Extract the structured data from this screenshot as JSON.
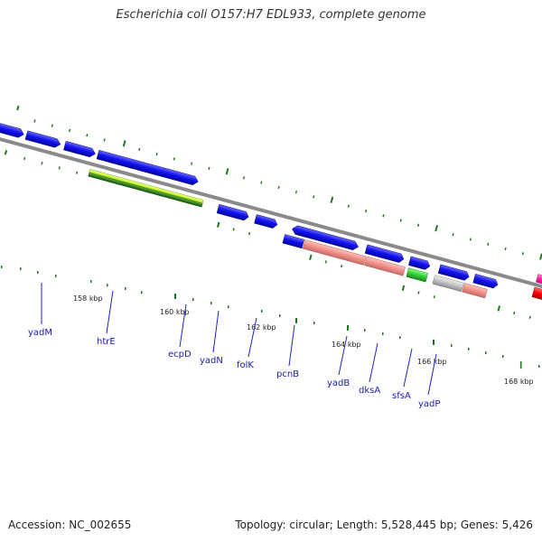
{
  "title": "Escherichia coli O157:H7 EDL933, complete genome",
  "accession": "Accession: NC_002655",
  "topology": "Topology: circular; Length: 5,528,445 bp; Genes: 5,426",
  "colors": {
    "forward_gene": "#1a1aee",
    "backbone": "#8a8a8a",
    "tick": "#1e7a1e",
    "label": "#1a1aa6",
    "magenta_track": "#ff1fa0",
    "red_track": "#ff0000",
    "salmon_track": "#f08f88",
    "green_track": "#34cc34",
    "grey_track": "#bdbdbd",
    "lime_track": "#ccff33",
    "darkgreen_track": "#2f7d1e"
  },
  "kbp_marks": [
    "158 kbp",
    "160 kbp",
    "162 kbp",
    "164 kbp",
    "166 kbp",
    "168 kbp"
  ],
  "genes": [
    {
      "name": "yadM"
    },
    {
      "name": "htrE"
    },
    {
      "name": "ecpD"
    },
    {
      "name": "yadN"
    },
    {
      "name": "folK"
    },
    {
      "name": "pcnB"
    },
    {
      "name": "yadB"
    },
    {
      "name": "dksA"
    },
    {
      "name": "sfsA"
    },
    {
      "name": "yadP"
    }
  ]
}
